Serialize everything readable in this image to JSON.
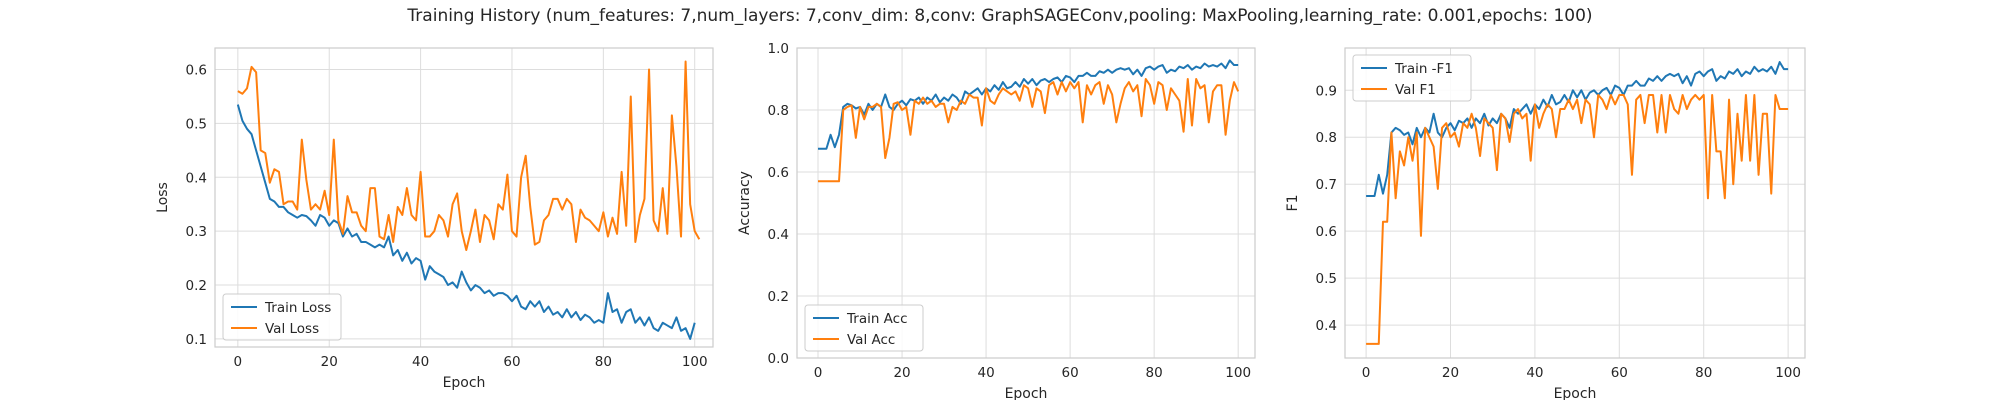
{
  "figure": {
    "title": "Training History (num_features: 7,num_layers: 7,conv_dim: 8,conv: GraphSAGEConv,pooling: MaxPooling,learning_rate: 0.001,epochs: 100)"
  },
  "colors": {
    "train": "#1f77b4",
    "val": "#ff7f0e",
    "grid": "#dddddd",
    "spine": "#cccccc"
  },
  "chart_data": [
    {
      "type": "line",
      "title": "",
      "xlabel": "Epoch",
      "ylabel": "Loss",
      "xlim": [
        -5,
        104
      ],
      "ylim": [
        0.085,
        0.64
      ],
      "xticks": [
        0,
        20,
        40,
        60,
        80,
        100
      ],
      "yticks": [
        0.1,
        0.2,
        0.3,
        0.4,
        0.5,
        0.6
      ],
      "xtick_labels": [
        "0",
        "20",
        "40",
        "60",
        "80",
        "100"
      ],
      "ytick_labels": [
        "0.1",
        "0.2",
        "0.3",
        "0.4",
        "0.5",
        "0.6"
      ],
      "grid": true,
      "legend": "lower-left",
      "series": [
        {
          "name": "Train Loss",
          "color": "train",
          "values": [
            0.535,
            0.505,
            0.49,
            0.48,
            0.45,
            0.42,
            0.39,
            0.36,
            0.355,
            0.345,
            0.345,
            0.335,
            0.33,
            0.325,
            0.33,
            0.328,
            0.32,
            0.31,
            0.33,
            0.325,
            0.31,
            0.32,
            0.315,
            0.29,
            0.305,
            0.29,
            0.295,
            0.28,
            0.28,
            0.275,
            0.27,
            0.275,
            0.27,
            0.29,
            0.255,
            0.265,
            0.245,
            0.26,
            0.24,
            0.25,
            0.245,
            0.21,
            0.235,
            0.225,
            0.22,
            0.215,
            0.2,
            0.205,
            0.195,
            0.225,
            0.205,
            0.19,
            0.2,
            0.195,
            0.185,
            0.19,
            0.18,
            0.185,
            0.185,
            0.18,
            0.17,
            0.18,
            0.16,
            0.155,
            0.17,
            0.16,
            0.17,
            0.15,
            0.16,
            0.145,
            0.15,
            0.14,
            0.155,
            0.14,
            0.15,
            0.135,
            0.145,
            0.14,
            0.13,
            0.135,
            0.13,
            0.185,
            0.15,
            0.155,
            0.13,
            0.15,
            0.155,
            0.13,
            0.14,
            0.125,
            0.14,
            0.12,
            0.115,
            0.13,
            0.125,
            0.12,
            0.14,
            0.115,
            0.12,
            0.1,
            0.13
          ]
        },
        {
          "name": "Val Loss",
          "color": "val",
          "values": [
            0.56,
            0.555,
            0.565,
            0.605,
            0.595,
            0.45,
            0.445,
            0.39,
            0.415,
            0.41,
            0.35,
            0.355,
            0.355,
            0.34,
            0.47,
            0.395,
            0.34,
            0.35,
            0.34,
            0.375,
            0.33,
            0.47,
            0.32,
            0.295,
            0.365,
            0.335,
            0.335,
            0.31,
            0.3,
            0.38,
            0.38,
            0.29,
            0.285,
            0.33,
            0.28,
            0.345,
            0.33,
            0.38,
            0.33,
            0.32,
            0.41,
            0.29,
            0.29,
            0.3,
            0.33,
            0.32,
            0.29,
            0.35,
            0.37,
            0.3,
            0.265,
            0.3,
            0.34,
            0.28,
            0.33,
            0.32,
            0.285,
            0.35,
            0.34,
            0.405,
            0.3,
            0.29,
            0.4,
            0.44,
            0.345,
            0.275,
            0.28,
            0.32,
            0.33,
            0.36,
            0.36,
            0.34,
            0.36,
            0.35,
            0.28,
            0.34,
            0.325,
            0.32,
            0.31,
            0.3,
            0.335,
            0.29,
            0.325,
            0.295,
            0.41,
            0.31,
            0.55,
            0.28,
            0.33,
            0.36,
            0.6,
            0.32,
            0.3,
            0.38,
            0.295,
            0.515,
            0.42,
            0.29,
            0.615,
            0.35,
            0.3,
            0.285
          ]
        }
      ]
    },
    {
      "type": "line",
      "title": "",
      "xlabel": "Epoch",
      "ylabel": "Accuracy",
      "xlim": [
        -5,
        104
      ],
      "ylim": [
        0,
        1
      ],
      "xticks": [
        0,
        20,
        40,
        60,
        80,
        100
      ],
      "yticks": [
        0,
        0.2,
        0.4,
        0.6,
        0.8,
        1.0
      ],
      "xtick_labels": [
        "0",
        "20",
        "40",
        "60",
        "80",
        "100"
      ],
      "ytick_labels": [
        "0.0",
        "0.2",
        "0.4",
        "0.6",
        "0.8",
        "1.0"
      ],
      "grid": true,
      "legend": "lower-left",
      "series": [
        {
          "name": "Train Acc",
          "color": "train",
          "values": [
            0.675,
            0.675,
            0.675,
            0.72,
            0.68,
            0.72,
            0.81,
            0.82,
            0.815,
            0.805,
            0.81,
            0.785,
            0.82,
            0.8,
            0.82,
            0.81,
            0.85,
            0.81,
            0.8,
            0.82,
            0.83,
            0.815,
            0.835,
            0.83,
            0.84,
            0.82,
            0.84,
            0.83,
            0.85,
            0.825,
            0.84,
            0.83,
            0.85,
            0.84,
            0.82,
            0.86,
            0.85,
            0.86,
            0.87,
            0.85,
            0.87,
            0.86,
            0.88,
            0.865,
            0.89,
            0.87,
            0.875,
            0.89,
            0.875,
            0.9,
            0.885,
            0.9,
            0.88,
            0.895,
            0.9,
            0.89,
            0.9,
            0.905,
            0.89,
            0.91,
            0.905,
            0.89,
            0.91,
            0.91,
            0.92,
            0.91,
            0.91,
            0.925,
            0.92,
            0.93,
            0.92,
            0.93,
            0.935,
            0.93,
            0.935,
            0.915,
            0.93,
            0.91,
            0.935,
            0.94,
            0.93,
            0.94,
            0.945,
            0.92,
            0.93,
            0.925,
            0.94,
            0.935,
            0.945,
            0.93,
            0.94,
            0.935,
            0.95,
            0.94,
            0.945,
            0.94,
            0.95,
            0.935,
            0.96,
            0.945,
            0.945
          ]
        },
        {
          "name": "Val Acc",
          "color": "val",
          "values": [
            0.57,
            0.57,
            0.57,
            0.57,
            0.57,
            0.57,
            0.8,
            0.81,
            0.815,
            0.71,
            0.81,
            0.77,
            0.81,
            0.81,
            0.82,
            0.81,
            0.645,
            0.71,
            0.82,
            0.825,
            0.8,
            0.81,
            0.72,
            0.83,
            0.82,
            0.84,
            0.82,
            0.83,
            0.81,
            0.82,
            0.82,
            0.76,
            0.81,
            0.8,
            0.83,
            0.82,
            0.85,
            0.84,
            0.84,
            0.75,
            0.87,
            0.83,
            0.82,
            0.85,
            0.87,
            0.86,
            0.85,
            0.86,
            0.83,
            0.88,
            0.87,
            0.81,
            0.87,
            0.86,
            0.79,
            0.88,
            0.89,
            0.85,
            0.89,
            0.86,
            0.89,
            0.87,
            0.89,
            0.76,
            0.88,
            0.85,
            0.88,
            0.89,
            0.82,
            0.88,
            0.85,
            0.76,
            0.82,
            0.87,
            0.89,
            0.86,
            0.88,
            0.78,
            0.9,
            0.88,
            0.82,
            0.89,
            0.88,
            0.8,
            0.87,
            0.85,
            0.83,
            0.73,
            0.9,
            0.75,
            0.9,
            0.87,
            0.88,
            0.76,
            0.86,
            0.88,
            0.88,
            0.72,
            0.83,
            0.89,
            0.86
          ]
        }
      ]
    },
    {
      "type": "line",
      "title": "",
      "xlabel": "Epoch",
      "ylabel": "F1",
      "xlim": [
        -5,
        104
      ],
      "ylim": [
        0.33,
        0.99
      ],
      "xticks": [
        0,
        20,
        40,
        60,
        80,
        100
      ],
      "yticks": [
        0.4,
        0.5,
        0.6,
        0.7,
        0.8,
        0.9
      ],
      "xtick_labels": [
        "0",
        "20",
        "40",
        "60",
        "80",
        "100"
      ],
      "ytick_labels": [
        "0.4",
        "0.5",
        "0.6",
        "0.7",
        "0.8",
        "0.9"
      ],
      "grid": true,
      "legend": "top-left",
      "series": [
        {
          "name": "Train -F1",
          "color": "train",
          "values": [
            0.675,
            0.675,
            0.675,
            0.72,
            0.68,
            0.72,
            0.81,
            0.82,
            0.815,
            0.805,
            0.81,
            0.785,
            0.82,
            0.8,
            0.82,
            0.81,
            0.85,
            0.81,
            0.8,
            0.82,
            0.83,
            0.815,
            0.835,
            0.83,
            0.84,
            0.82,
            0.84,
            0.83,
            0.85,
            0.825,
            0.84,
            0.83,
            0.85,
            0.84,
            0.82,
            0.86,
            0.85,
            0.86,
            0.87,
            0.85,
            0.87,
            0.86,
            0.88,
            0.865,
            0.89,
            0.87,
            0.875,
            0.89,
            0.875,
            0.9,
            0.885,
            0.9,
            0.88,
            0.895,
            0.9,
            0.89,
            0.9,
            0.905,
            0.89,
            0.91,
            0.905,
            0.89,
            0.91,
            0.91,
            0.92,
            0.91,
            0.91,
            0.925,
            0.92,
            0.93,
            0.92,
            0.93,
            0.935,
            0.93,
            0.935,
            0.915,
            0.93,
            0.91,
            0.935,
            0.94,
            0.93,
            0.94,
            0.945,
            0.92,
            0.93,
            0.925,
            0.94,
            0.935,
            0.945,
            0.93,
            0.94,
            0.935,
            0.95,
            0.94,
            0.945,
            0.94,
            0.95,
            0.935,
            0.96,
            0.945,
            0.945
          ]
        },
        {
          "name": "Val F1",
          "color": "val",
          "values": [
            0.36,
            0.36,
            0.36,
            0.36,
            0.62,
            0.62,
            0.81,
            0.67,
            0.77,
            0.74,
            0.8,
            0.75,
            0.81,
            0.59,
            0.82,
            0.8,
            0.78,
            0.69,
            0.82,
            0.83,
            0.8,
            0.81,
            0.78,
            0.83,
            0.82,
            0.85,
            0.82,
            0.76,
            0.84,
            0.83,
            0.82,
            0.73,
            0.85,
            0.84,
            0.79,
            0.85,
            0.86,
            0.84,
            0.85,
            0.75,
            0.87,
            0.82,
            0.85,
            0.87,
            0.86,
            0.8,
            0.86,
            0.86,
            0.88,
            0.86,
            0.88,
            0.83,
            0.88,
            0.87,
            0.8,
            0.89,
            0.88,
            0.86,
            0.89,
            0.87,
            0.89,
            0.89,
            0.87,
            0.72,
            0.88,
            0.89,
            0.83,
            0.89,
            0.89,
            0.81,
            0.89,
            0.81,
            0.89,
            0.86,
            0.85,
            0.89,
            0.86,
            0.88,
            0.89,
            0.88,
            0.89,
            0.67,
            0.89,
            0.77,
            0.77,
            0.67,
            0.88,
            0.7,
            0.85,
            0.75,
            0.89,
            0.75,
            0.89,
            0.72,
            0.85,
            0.85,
            0.68,
            0.89,
            0.86,
            0.86,
            0.86
          ]
        }
      ]
    }
  ]
}
